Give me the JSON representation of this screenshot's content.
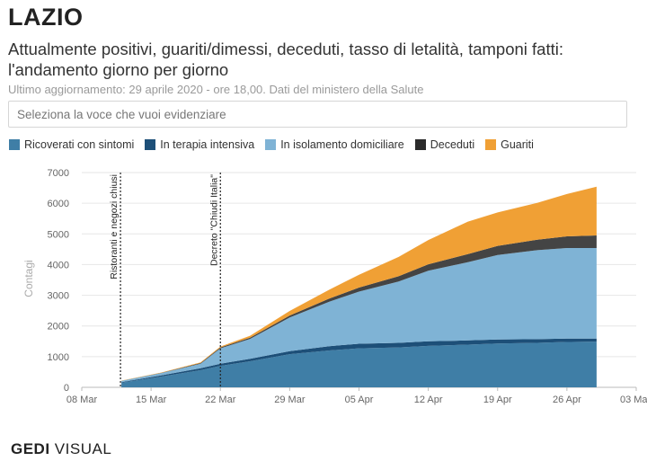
{
  "header": {
    "title": "LAZIO",
    "subtitle": "Attualmente positivi, guariti/dimessi, deceduti, tasso di letalità, tamponi fatti: l'andamento giorno per giorno",
    "updated": "Ultimo aggiornamento: 29 aprile 2020 - ore 18,00. Dati del ministero della Salute",
    "selector_placeholder": "Seleziona la voce che vuoi evidenziare"
  },
  "logo": {
    "brand": "GEDI",
    "suffix": "VISUAL"
  },
  "colors": {
    "ricoverati": "#3f7ea6",
    "terapia": "#1d4f78",
    "isolamento": "#7fb3d5",
    "deceduti": "#444444",
    "guariti": "#f0a035"
  },
  "chart_data": {
    "type": "area",
    "stacked": true,
    "ylabel": "Contagi",
    "ylim": [
      0,
      7000
    ],
    "yticks": [
      "0",
      "1000",
      "2000",
      "3000",
      "4000",
      "5000",
      "6000",
      "7000"
    ],
    "xticks": [
      "08 Mar",
      "15 Mar",
      "22 Mar",
      "29 Mar",
      "05 Apr",
      "12 Apr",
      "19 Apr",
      "26 Apr",
      "03 May"
    ],
    "x": [
      "12 Mar",
      "16 Mar",
      "20 Mar",
      "22 Mar",
      "25 Mar",
      "29 Mar",
      "02 Apr",
      "05 Apr",
      "09 Apr",
      "12 Apr",
      "16 Apr",
      "19 Apr",
      "23 Apr",
      "26 Apr",
      "29 Apr"
    ],
    "series": [
      {
        "name": "Ricoverati con sintomi",
        "key": "ricoverati",
        "values": [
          150,
          350,
          560,
          700,
          850,
          1080,
          1200,
          1270,
          1300,
          1350,
          1390,
          1430,
          1450,
          1480,
          1490
        ]
      },
      {
        "name": "In terapia intensiva",
        "key": "terapia",
        "values": [
          20,
          40,
          60,
          70,
          80,
          100,
          140,
          150,
          150,
          150,
          140,
          130,
          120,
          110,
          100
        ]
      },
      {
        "name": "In isolamento domiciliare",
        "key": "isolamento",
        "values": [
          40,
          70,
          150,
          500,
          650,
          1100,
          1450,
          1700,
          2000,
          2300,
          2550,
          2750,
          2900,
          2950,
          2950
        ]
      },
      {
        "name": "Deceduti",
        "key": "deceduti",
        "values": [
          5,
          10,
          20,
          30,
          40,
          60,
          100,
          130,
          170,
          210,
          260,
          300,
          340,
          380,
          410
        ]
      },
      {
        "name": "Guariti",
        "key": "guariti",
        "values": [
          5,
          10,
          20,
          30,
          60,
          150,
          290,
          420,
          630,
          790,
          1060,
          1090,
          1200,
          1380,
          1590
        ]
      }
    ],
    "annotations": [
      {
        "label": "Ristoranti e negozi chiusi",
        "x": "12 Mar"
      },
      {
        "label": "Decreto \"Chiudi Italia\"",
        "x": "22 Mar"
      }
    ]
  }
}
